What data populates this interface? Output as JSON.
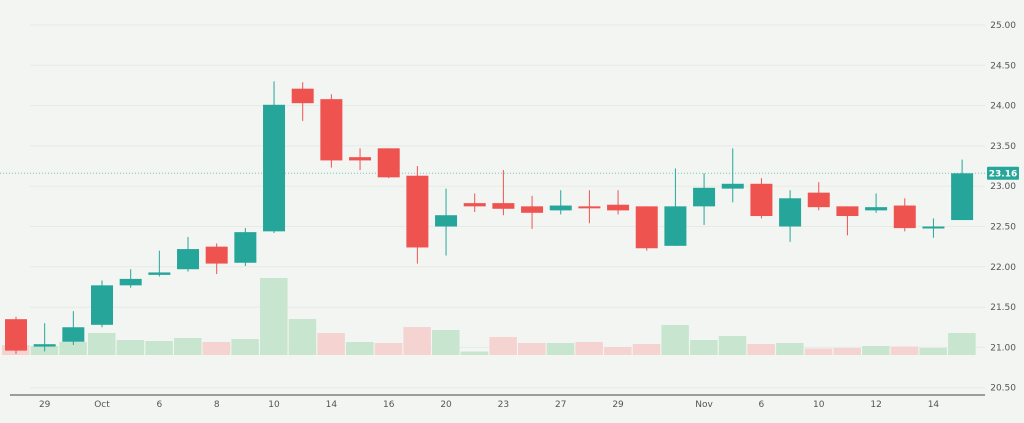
{
  "chart_data": {
    "type": "candlestick",
    "title": "",
    "xlabel": "",
    "ylabel": "",
    "ylim": [
      20.5,
      25.0
    ],
    "y_ticks": [
      "25.00",
      "24.50",
      "24.00",
      "23.50",
      "23.00",
      "22.50",
      "22.00",
      "21.50",
      "21.00",
      "20.50"
    ],
    "x_tick_labels": [
      {
        "candle": 2,
        "label": "29"
      },
      {
        "candle": 4,
        "label": "Oct"
      },
      {
        "candle": 6,
        "label": "6"
      },
      {
        "candle": 8,
        "label": "8"
      },
      {
        "candle": 10,
        "label": "10"
      },
      {
        "candle": 12,
        "label": "14"
      },
      {
        "candle": 14,
        "label": "16"
      },
      {
        "candle": 16,
        "label": "20"
      },
      {
        "candle": 18,
        "label": "23"
      },
      {
        "candle": 20,
        "label": "27"
      },
      {
        "candle": 22,
        "label": "29"
      },
      {
        "candle": 25,
        "label": "Nov"
      },
      {
        "candle": 27,
        "label": "6"
      },
      {
        "candle": 29,
        "label": "10"
      },
      {
        "candle": 31,
        "label": "12"
      },
      {
        "candle": 33,
        "label": "14"
      }
    ],
    "grid": true,
    "last_price": "23.16",
    "colors": {
      "up": "#26a69a",
      "down": "#ef5350",
      "volume_up": "#c8e6cf",
      "volume_down": "#f5d3d1",
      "background": "#f2f5f2"
    },
    "ohlc": [
      [
        21.35,
        21.38,
        20.92,
        20.96
      ],
      [
        21.01,
        21.3,
        20.95,
        21.04
      ],
      [
        21.07,
        21.45,
        21.03,
        21.25
      ],
      [
        21.28,
        21.83,
        21.25,
        21.77
      ],
      [
        21.77,
        21.97,
        21.74,
        21.85
      ],
      [
        21.9,
        22.2,
        21.88,
        21.93
      ],
      [
        21.97,
        22.37,
        21.94,
        22.22
      ],
      [
        22.25,
        22.29,
        21.91,
        22.04
      ],
      [
        22.05,
        22.48,
        22.01,
        22.43
      ],
      [
        22.44,
        24.3,
        22.42,
        24.01
      ],
      [
        24.21,
        24.29,
        23.81,
        24.03
      ],
      [
        24.08,
        24.14,
        23.23,
        23.32
      ],
      [
        23.36,
        23.47,
        23.2,
        23.32
      ],
      [
        23.47,
        23.47,
        23.1,
        23.11
      ],
      [
        23.13,
        23.25,
        22.04,
        22.24
      ],
      [
        22.5,
        22.97,
        22.14,
        22.64
      ],
      [
        22.79,
        22.91,
        22.68,
        22.75
      ],
      [
        22.79,
        23.2,
        22.64,
        22.72
      ],
      [
        22.75,
        22.88,
        22.47,
        22.67
      ],
      [
        22.7,
        22.95,
        22.65,
        22.76
      ],
      [
        22.75,
        22.95,
        22.54,
        22.73
      ],
      [
        22.77,
        22.95,
        22.65,
        22.7
      ],
      [
        22.75,
        22.75,
        22.2,
        22.23
      ],
      [
        22.26,
        23.22,
        22.26,
        22.75
      ],
      [
        22.75,
        23.16,
        22.52,
        22.98
      ],
      [
        22.97,
        23.47,
        22.8,
        23.03
      ],
      [
        23.03,
        23.1,
        22.6,
        22.63
      ],
      [
        22.5,
        22.95,
        22.31,
        22.85
      ],
      [
        22.92,
        23.05,
        22.7,
        22.74
      ],
      [
        22.75,
        22.75,
        22.39,
        22.63
      ],
      [
        22.7,
        22.91,
        22.67,
        22.74
      ],
      [
        22.76,
        22.85,
        22.44,
        22.48
      ],
      [
        22.48,
        22.6,
        22.36,
        22.5
      ],
      [
        22.58,
        23.33,
        22.58,
        23.16
      ]
    ],
    "volume_relative": [
      10,
      9,
      13,
      22,
      15,
      14,
      17,
      13,
      16,
      77,
      36,
      22,
      13,
      12,
      28,
      25,
      3.5,
      18,
      12,
      12,
      13,
      8,
      11,
      30,
      15,
      19,
      11,
      12,
      6.5,
      7,
      9,
      8.5,
      7,
      22
    ],
    "volume_direction": [
      "down",
      "up",
      "up",
      "up",
      "up",
      "up",
      "up",
      "down",
      "up",
      "up",
      "up",
      "down",
      "up",
      "down",
      "down",
      "up",
      "up",
      "down",
      "down",
      "up",
      "down",
      "down",
      "down",
      "up",
      "up",
      "up",
      "down",
      "up",
      "down",
      "down",
      "up",
      "down",
      "up",
      "up"
    ]
  }
}
